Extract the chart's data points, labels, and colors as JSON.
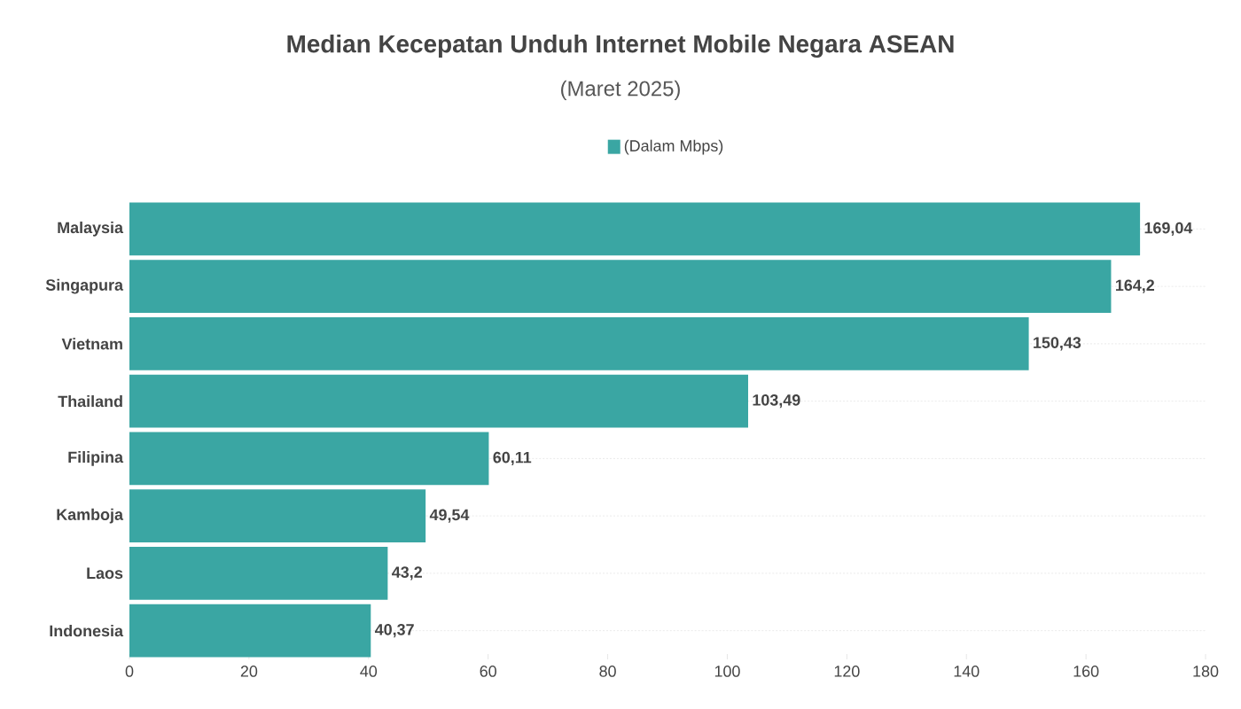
{
  "chart_data": {
    "type": "bar",
    "orientation": "horizontal",
    "title": "Median Kecepatan Unduh Internet Mobile Negara ASEAN",
    "subtitle": "(Maret 2025)",
    "categories": [
      "Malaysia",
      "Singapura",
      "Vietnam",
      "Thailand",
      "Filipina",
      "Kamboja",
      "Laos",
      "Indonesia"
    ],
    "series": [
      {
        "name": "(Dalam Mbps)",
        "color": "#3aa6a3",
        "values": [
          169.04,
          164.2,
          150.43,
          103.49,
          60.11,
          49.54,
          43.2,
          40.37
        ],
        "value_labels": [
          "169,04",
          "164,2",
          "150,43",
          "103,49",
          "60,11",
          "49,54",
          "43,2",
          "40,37"
        ]
      }
    ],
    "xlim": [
      0,
      180
    ],
    "xticks": [
      0,
      20,
      40,
      60,
      80,
      100,
      120,
      140,
      160,
      180
    ],
    "grid": "y",
    "legend": "top"
  }
}
